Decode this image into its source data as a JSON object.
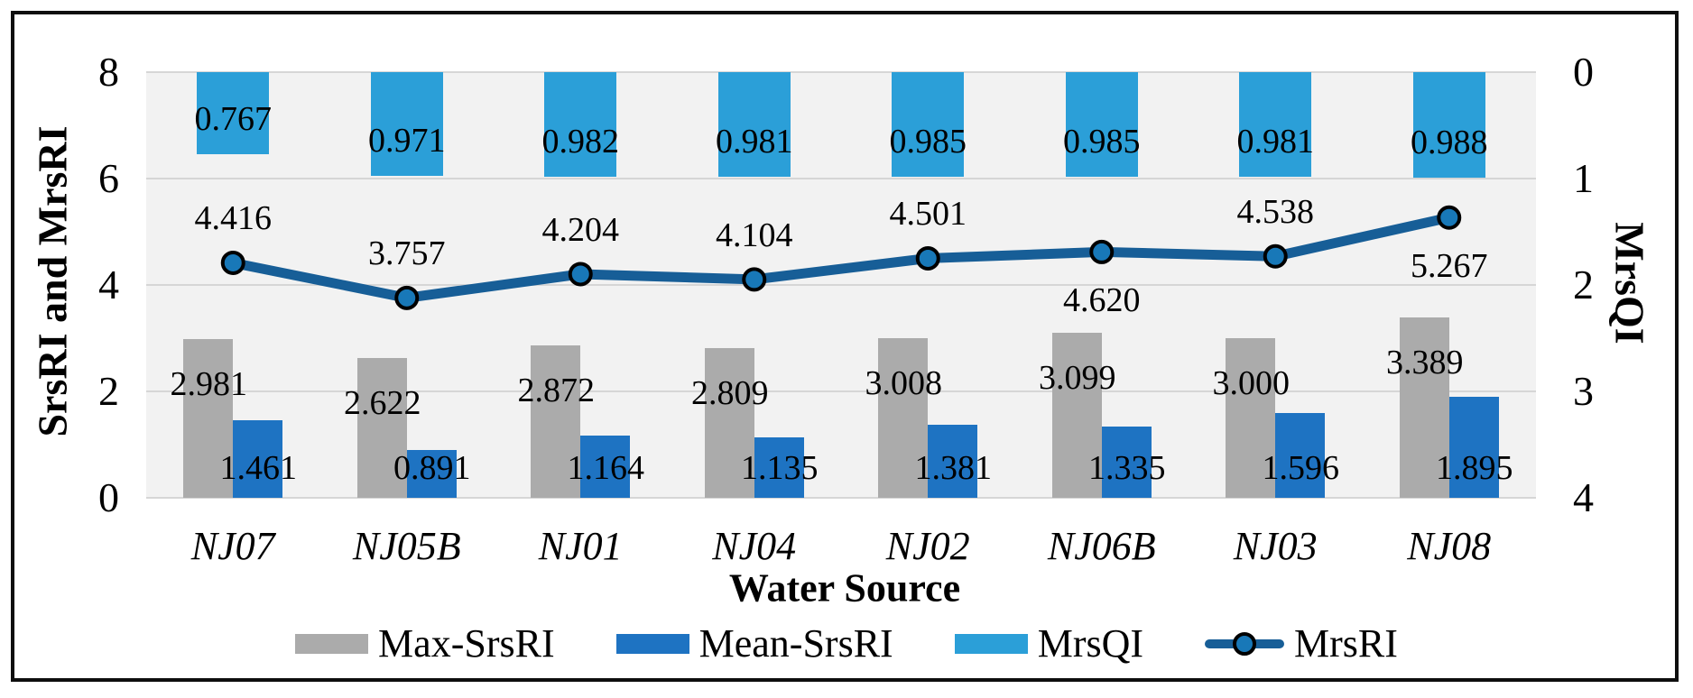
{
  "chart_data": {
    "type": "combo-bar-line",
    "categories": [
      "NJ07",
      "NJ05B",
      "NJ01",
      "NJ04",
      "NJ02",
      "NJ06B",
      "NJ03",
      "NJ08"
    ],
    "series": [
      {
        "name": "Max-SrsRI",
        "type": "bar",
        "axis": "left",
        "color": "#ababab",
        "values": [
          2.981,
          2.622,
          2.872,
          2.809,
          3.008,
          3.099,
          3.0,
          3.389
        ]
      },
      {
        "name": "Mean-SrsRI",
        "type": "bar",
        "axis": "left",
        "color": "#1e73c2",
        "values": [
          1.461,
          0.891,
          1.164,
          1.135,
          1.381,
          1.335,
          1.596,
          1.895
        ]
      },
      {
        "name": "MrsQI",
        "type": "bar",
        "axis": "right",
        "color": "#2b9fd8",
        "values": [
          0.767,
          0.971,
          0.982,
          0.981,
          0.985,
          0.985,
          0.981,
          0.988
        ]
      },
      {
        "name": "MrsRI",
        "type": "line",
        "axis": "left",
        "color": "#175e97",
        "marker_color": "#1878b8",
        "values": [
          4.416,
          3.757,
          4.204,
          4.104,
          4.501,
          4.62,
          4.538,
          5.267
        ],
        "label_below": [
          false,
          false,
          false,
          false,
          false,
          true,
          false,
          true
        ]
      }
    ],
    "left_axis": {
      "title": "SrsRI and MrsRI",
      "min": 0,
      "max": 8,
      "ticks_top_to_bottom": [
        "8",
        "6",
        "4",
        "2",
        "0"
      ]
    },
    "right_axis": {
      "title": "MrsQI",
      "min": 0,
      "max": 4,
      "inverted": true,
      "ticks_top_to_bottom": [
        "0",
        "1",
        "2",
        "3",
        "4"
      ]
    },
    "x_axis": {
      "title": "Water Source"
    },
    "legend_position": "bottom",
    "grid": true,
    "value_label_decimals": 3
  }
}
